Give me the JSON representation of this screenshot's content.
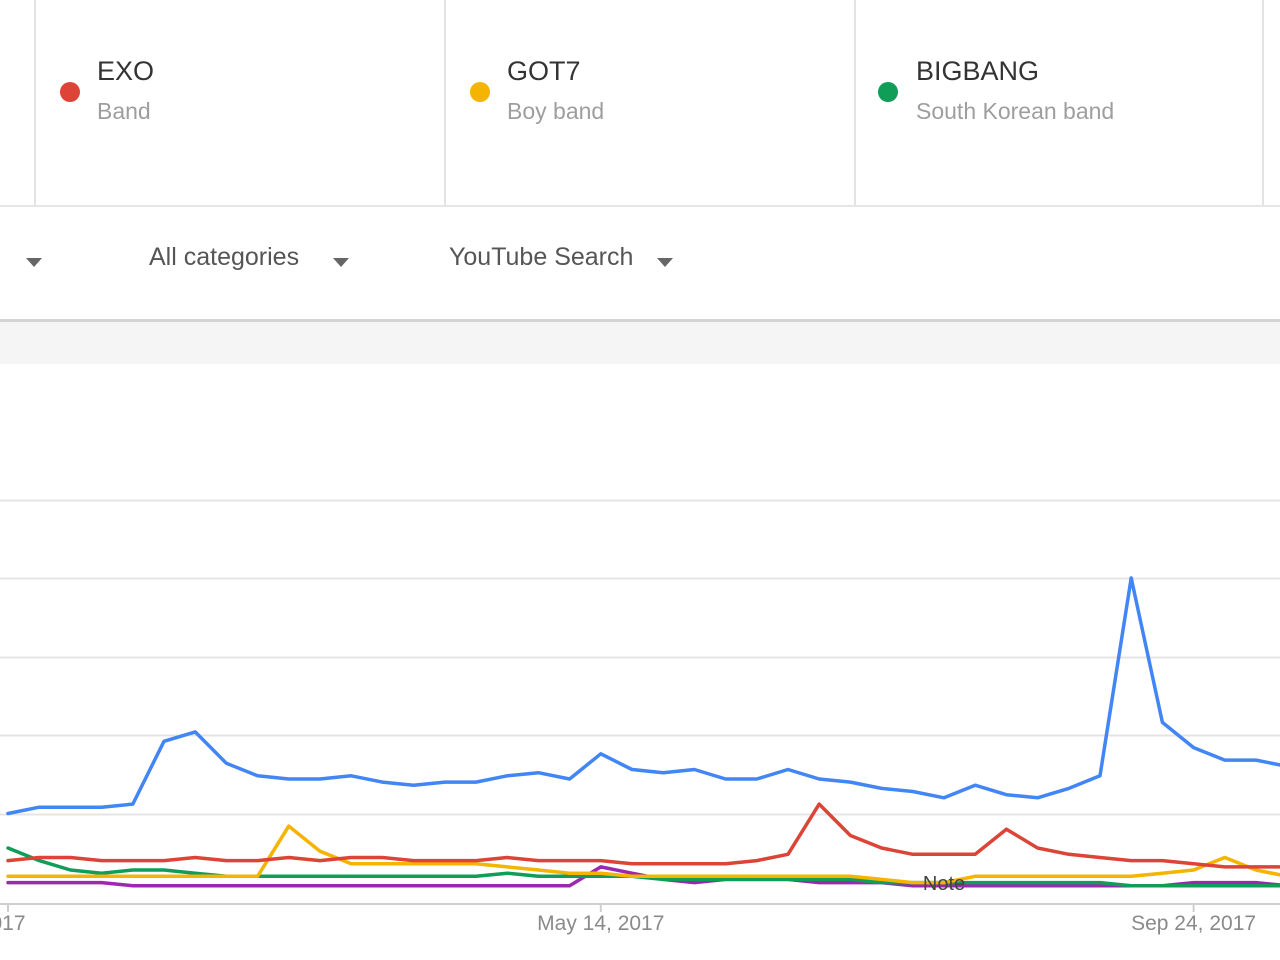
{
  "terms": [
    {
      "name": "EXO",
      "subtitle": "Band",
      "color": "#db4437"
    },
    {
      "name": "GOT7",
      "subtitle": "Boy band",
      "color": "#f4b400"
    },
    {
      "name": "BIGBANG",
      "subtitle": "South Korean band",
      "color": "#0f9d58"
    }
  ],
  "filters": {
    "category": "All categories",
    "property": "YouTube Search"
  },
  "chart_data": {
    "type": "line",
    "x_tick_labels": [
      {
        "label": "017",
        "x": 0
      },
      {
        "label": "May 14, 2017",
        "x": 19
      },
      {
        "label": "Sep 24, 2017",
        "x": 38
      }
    ],
    "annotation": "Note",
    "annotation_x": 30,
    "grid": true,
    "ylim": [
      0,
      100
    ],
    "series": [
      {
        "color": "#4285f4",
        "values": [
          25,
          27,
          27,
          27,
          28,
          48,
          51,
          41,
          37,
          36,
          36,
          37,
          35,
          34,
          35,
          35,
          37,
          38,
          36,
          44,
          39,
          38,
          39,
          36,
          36,
          39,
          36,
          35,
          33,
          32,
          30,
          34,
          31,
          30,
          33,
          37,
          100,
          54,
          46,
          42,
          42,
          40
        ]
      },
      {
        "color": "#db4437",
        "values": [
          10,
          11,
          11,
          10,
          10,
          10,
          11,
          10,
          10,
          11,
          10,
          11,
          11,
          10,
          10,
          10,
          11,
          10,
          10,
          10,
          9,
          9,
          9,
          9,
          10,
          12,
          28,
          18,
          14,
          12,
          12,
          12,
          20,
          14,
          12,
          11,
          10,
          10,
          9,
          8,
          8,
          8
        ]
      },
      {
        "color": "#f4b400",
        "values": [
          5,
          5,
          5,
          5,
          5,
          5,
          5,
          5,
          5,
          21,
          13,
          9,
          9,
          9,
          9,
          9,
          8,
          7,
          6,
          6,
          5,
          5,
          5,
          5,
          5,
          5,
          5,
          5,
          4,
          3,
          3,
          5,
          5,
          5,
          5,
          5,
          5,
          6,
          7,
          11,
          7,
          5
        ]
      },
      {
        "color": "#0f9d58",
        "values": [
          14,
          10,
          7,
          6,
          7,
          7,
          6,
          5,
          5,
          5,
          5,
          5,
          5,
          5,
          5,
          5,
          6,
          5,
          5,
          5,
          5,
          4,
          4,
          4,
          4,
          4,
          4,
          4,
          3,
          3,
          3,
          3,
          3,
          3,
          3,
          3,
          2,
          2,
          2,
          2,
          2,
          2
        ]
      },
      {
        "color": "#9c27b0",
        "values": [
          3,
          3,
          3,
          3,
          2,
          2,
          2,
          2,
          2,
          2,
          2,
          2,
          2,
          2,
          2,
          2,
          2,
          2,
          2,
          8,
          6,
          4,
          3,
          4,
          4,
          4,
          3,
          3,
          3,
          2,
          2,
          2,
          2,
          2,
          2,
          2,
          2,
          2,
          3,
          3,
          3,
          2
        ]
      }
    ]
  }
}
